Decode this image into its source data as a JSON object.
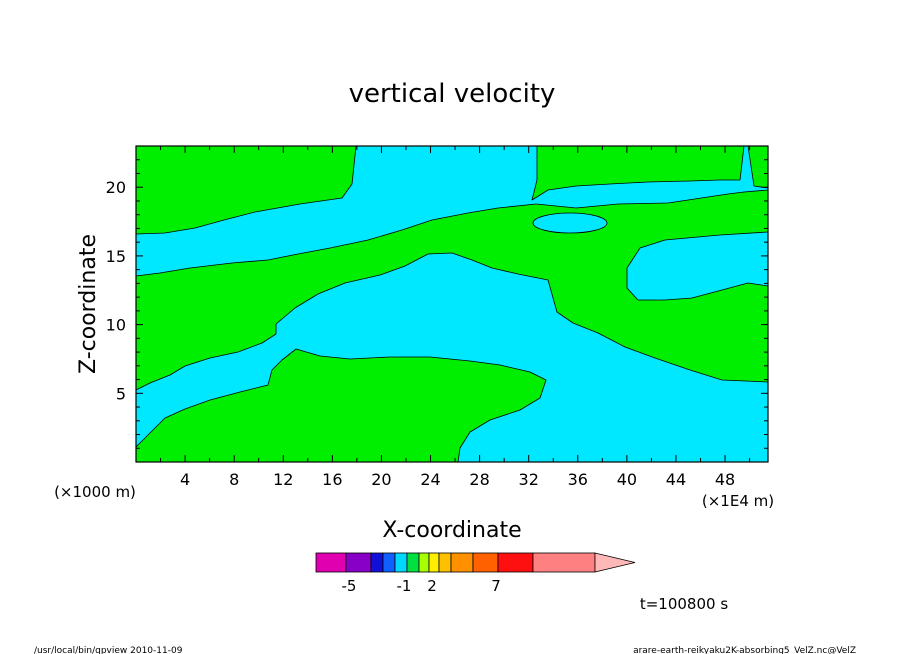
{
  "chart_data": {
    "type": "contour",
    "title": "vertical velocity",
    "xlabel": "X-coordinate",
    "ylabel": "Z-coordinate",
    "x_scale_note_left": "(×1000 m)",
    "x_scale_note_right": "(×1E4 m)",
    "x_range": [
      0,
      51.5
    ],
    "y_range": [
      0,
      23
    ],
    "x_ticks": [
      4,
      8,
      12,
      16,
      20,
      24,
      28,
      32,
      36,
      40,
      44,
      48
    ],
    "y_ticks": [
      5,
      10,
      15,
      20
    ],
    "time_label": "t=100800 s",
    "colors": {
      "negative_field": "#00e8ff",
      "positive_field": "#00ee00",
      "contour_line": "#000000"
    },
    "colorbar": {
      "colors": [
        "#e000b0",
        "#8800c8",
        "#1010d8",
        "#1060ff",
        "#00d8ff",
        "#00e040",
        "#a8ff00",
        "#ffee00",
        "#ffc000",
        "#ff9000",
        "#ff6000",
        "#ff1010",
        "#ff8080",
        "#ffb8b8"
      ],
      "tick_labels": [
        "-5",
        "-1",
        "2",
        "7"
      ]
    }
  },
  "footer": {
    "left": "/usr/local/bin/gpview  2010-11-09",
    "right": "arare-earth-reikyaku2K-absorbing5_VelZ.nc@VelZ"
  }
}
